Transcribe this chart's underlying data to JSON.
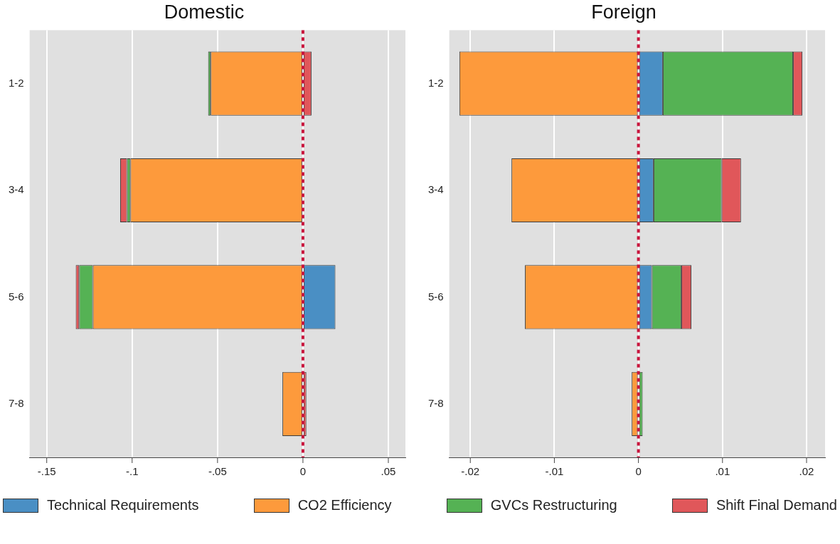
{
  "chart_data": [
    {
      "type": "bar",
      "orientation": "horizontal",
      "stacked": true,
      "title": "Domestic",
      "categories": [
        "1-2",
        "3-4",
        "5-6",
        "7-8"
      ],
      "series": [
        {
          "name": "Technical Requirements",
          "color": "#4a8fc4",
          "values": [
            0,
            0,
            0.019,
            0
          ]
        },
        {
          "name": "CO2 Efficiency",
          "color": "#fd9a3c",
          "values": [
            -0.054,
            -0.101,
            -0.123,
            -0.012
          ]
        },
        {
          "name": "GVCs Restructuring",
          "color": "#55b254",
          "values": [
            -0.0015,
            -0.002,
            -0.008,
            0
          ]
        },
        {
          "name": "Shift Final Demand",
          "color": "#e0575a",
          "values": [
            0.005,
            -0.004,
            -0.002,
            0.002
          ]
        }
      ],
      "xlim": [
        -0.16,
        0.06
      ],
      "xticks": [
        {
          "value": -0.15,
          "label": "-.15"
        },
        {
          "value": -0.1,
          "label": "-.1"
        },
        {
          "value": -0.05,
          "label": "-.05"
        },
        {
          "value": 0,
          "label": "0"
        },
        {
          "value": 0.05,
          "label": ".05"
        }
      ],
      "ref_lines": [
        {
          "axis": "x",
          "value": 0,
          "color": "#c8143c",
          "line_style": "dotted"
        }
      ],
      "grid": "x",
      "legend": "bottom"
    },
    {
      "type": "bar",
      "orientation": "horizontal",
      "stacked": true,
      "title": "Foreign",
      "categories": [
        "1-2",
        "3-4",
        "5-6",
        "7-8"
      ],
      "series": [
        {
          "color": "#4a8fc4",
          "values": [
            0.0029,
            0.0018,
            0.0016,
            0
          ]
        },
        {
          "color": "#fd9a3c",
          "values": [
            -0.0213,
            -0.0151,
            -0.0135,
            -0.0008
          ]
        },
        {
          "color": "#55b254",
          "values": [
            0.0155,
            0.0081,
            0.0035,
            0.0005
          ]
        },
        {
          "color": "#e0575a",
          "values": [
            0.0011,
            0.0023,
            0.0012,
            0
          ]
        }
      ],
      "xlim": [
        -0.0225,
        0.0222
      ],
      "xticks": [
        {
          "value": -0.02,
          "label": "-.02"
        },
        {
          "value": -0.01,
          "label": "-.01"
        },
        {
          "value": 0,
          "label": "0"
        },
        {
          "value": 0.01,
          "label": ".01"
        },
        {
          "value": 0.02,
          "label": ".02"
        }
      ],
      "ref_lines": [
        {
          "axis": "x",
          "value": 0,
          "color": "#c8143c",
          "line_style": "dotted"
        }
      ],
      "grid": "x"
    }
  ]
}
